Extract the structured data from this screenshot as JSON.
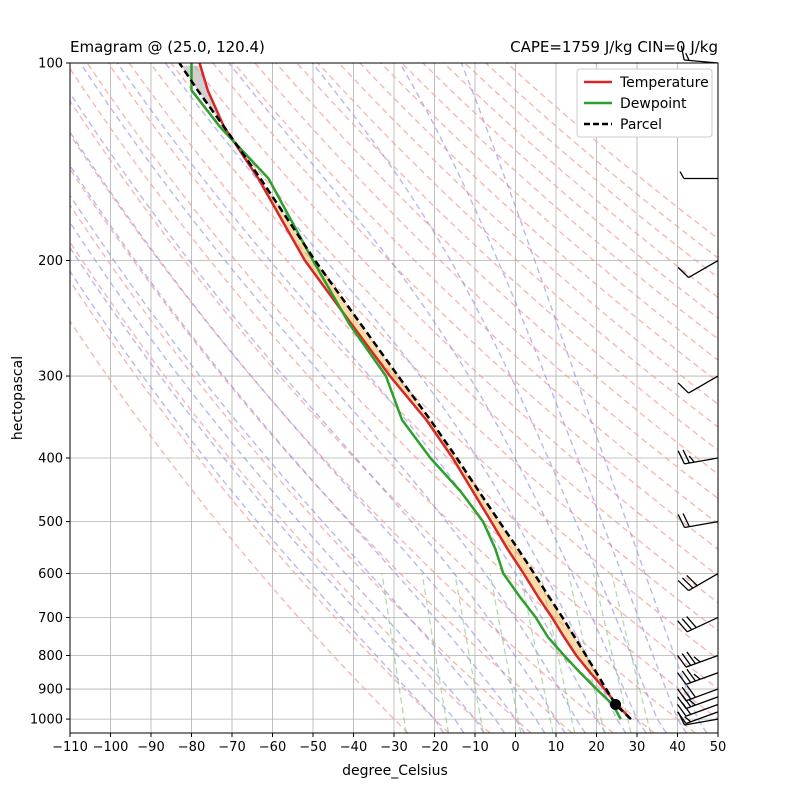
{
  "chart_data": {
    "type": "line",
    "title_left": "Emagram @ (25.0, 120.4)",
    "title_right": "CAPE=1759 J/kg  CIN=0 J/kg",
    "xlabel": "degree_Celsius",
    "ylabel": "hectopascal",
    "xlim": [
      -110,
      50
    ],
    "ylim": [
      1050,
      100
    ],
    "y_scale": "log",
    "grid": true,
    "x_ticks": [
      -110,
      -100,
      -90,
      -80,
      -70,
      -60,
      -50,
      -40,
      -30,
      -20,
      -10,
      0,
      10,
      20,
      30,
      40,
      50
    ],
    "x_tick_labels": [
      "−110",
      "−100",
      "−90",
      "−80",
      "−70",
      "−60",
      "−50",
      "−40",
      "−30",
      "−20",
      "−10",
      "0",
      "10",
      "20",
      "30",
      "40",
      "50"
    ],
    "y_ticks": [
      1000,
      900,
      800,
      700,
      600,
      500,
      400,
      300,
      200,
      100
    ],
    "y_tick_labels": [
      "1000",
      "900",
      "800",
      "700",
      "600",
      "500",
      "400",
      "300",
      "200",
      "100"
    ],
    "legend_position": "top-right",
    "legend": [
      "Temperature",
      "Dewpoint",
      "Parcel"
    ],
    "series": [
      {
        "name": "Temperature",
        "color": "#d62728",
        "pressure": [
          1000,
          950,
          900,
          850,
          800,
          750,
          700,
          650,
          600,
          550,
          500,
          450,
          400,
          350,
          300,
          250,
          200,
          150,
          125,
          110,
          100
        ],
        "values": [
          28.5,
          25,
          22,
          18.5,
          15,
          12,
          9,
          5.5,
          2,
          -2,
          -6,
          -10.5,
          -15.5,
          -22,
          -31,
          -40.5,
          -52,
          -63.5,
          -72,
          -76,
          -78
        ]
      },
      {
        "name": "Dewpoint",
        "color": "#2ca02c",
        "pressure": [
          1000,
          950,
          900,
          850,
          800,
          750,
          700,
          650,
          600,
          550,
          500,
          450,
          400,
          350,
          300,
          250,
          200,
          150,
          125,
          110,
          100
        ],
        "values": [
          26,
          24,
          20,
          16,
          12,
          8,
          5,
          1,
          -3,
          -5,
          -8,
          -13.5,
          -21,
          -28,
          -32,
          -41,
          -50,
          -61,
          -73,
          -80,
          -80
        ]
      },
      {
        "name": "Parcel",
        "color": "#000000",
        "style": "dashed",
        "pressure": [
          1000,
          950,
          900,
          850,
          800,
          750,
          700,
          650,
          600,
          550,
          500,
          450,
          400,
          350,
          300,
          250,
          200,
          150,
          125,
          110,
          100
        ],
        "values": [
          28.5,
          24.7,
          22.4,
          20,
          17.4,
          14.6,
          11.6,
          8.2,
          4.6,
          0.6,
          -4,
          -9,
          -14.5,
          -21,
          -29,
          -38.2,
          -49.5,
          -63,
          -72,
          -78.5,
          -83
        ]
      }
    ],
    "surface_parcel": {
      "pressure": 950,
      "temperature": 24.7
    },
    "cape_fill_color": "#f5b041",
    "cin_fill_color": "#999999",
    "wind_barbs": [
      {
        "pressure": 1000,
        "speed_kt": 10,
        "direction_deg": 260
      },
      {
        "pressure": 975,
        "speed_kt": 15,
        "direction_deg": 250
      },
      {
        "pressure": 950,
        "speed_kt": 20,
        "direction_deg": 250
      },
      {
        "pressure": 925,
        "speed_kt": 25,
        "direction_deg": 250
      },
      {
        "pressure": 900,
        "speed_kt": 30,
        "direction_deg": 250
      },
      {
        "pressure": 850,
        "speed_kt": 35,
        "direction_deg": 250
      },
      {
        "pressure": 800,
        "speed_kt": 35,
        "direction_deg": 250
      },
      {
        "pressure": 700,
        "speed_kt": 30,
        "direction_deg": 245
      },
      {
        "pressure": 600,
        "speed_kt": 30,
        "direction_deg": 240
      },
      {
        "pressure": 500,
        "speed_kt": 20,
        "direction_deg": 260
      },
      {
        "pressure": 400,
        "speed_kt": 25,
        "direction_deg": 260
      },
      {
        "pressure": 300,
        "speed_kt": 10,
        "direction_deg": 240
      },
      {
        "pressure": 200,
        "speed_kt": 10,
        "direction_deg": 240
      },
      {
        "pressure": 150,
        "speed_kt": 5,
        "direction_deg": 270
      },
      {
        "pressure": 100,
        "speed_kt": 15,
        "direction_deg": 275
      }
    ],
    "dry_adiabat_color": "#f4a09a",
    "moist_adiabat_color": "#8a8ae0",
    "mixing_ratio_color": "#7fc27f"
  }
}
